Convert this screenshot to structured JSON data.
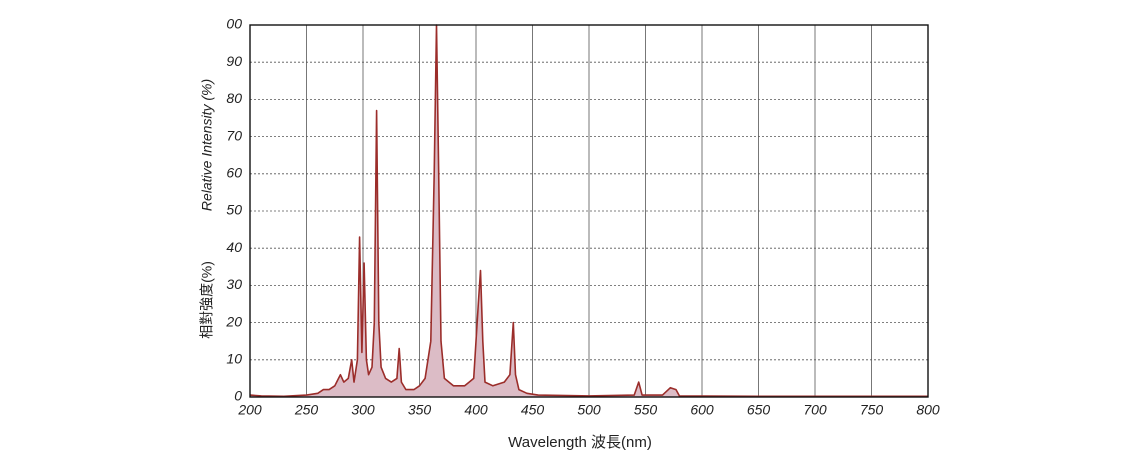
{
  "chart_data": {
    "type": "area",
    "x_label": "Wavelength 波長(nm)",
    "y_label": "Relative Intensity (%)",
    "y_label_alt": "相對強度(%)",
    "x": [
      200,
      210,
      230,
      250,
      260,
      265,
      270,
      275,
      280,
      283,
      287,
      290,
      292,
      295,
      297,
      299,
      301,
      303,
      305,
      308,
      310,
      312,
      314,
      316,
      320,
      325,
      330,
      332,
      334,
      338,
      345,
      350,
      355,
      360,
      363,
      365,
      367,
      369,
      372,
      380,
      390,
      398,
      402,
      404,
      406,
      408,
      415,
      425,
      430,
      433,
      435,
      438,
      445,
      455,
      500,
      540,
      544,
      547,
      565,
      572,
      577,
      580,
      650,
      800
    ],
    "values": [
      0.5,
      0.3,
      0.2,
      0.5,
      1,
      2,
      2,
      3,
      6,
      4,
      5,
      10,
      4,
      10,
      43,
      12,
      36,
      10,
      6,
      8,
      20,
      77,
      20,
      8,
      5,
      4,
      5,
      13,
      4,
      2,
      2,
      3,
      5,
      15,
      60,
      100,
      60,
      15,
      5,
      3,
      3,
      5,
      25,
      34,
      15,
      4,
      3,
      4,
      6,
      20,
      6,
      2,
      1,
      0.5,
      0.3,
      0.5,
      4,
      0.5,
      0.5,
      2.5,
      2,
      0.3,
      0.2,
      0.2
    ],
    "color": "#9b2d2a",
    "fill": "#dcbcc6",
    "xlim": [
      200,
      800
    ],
    "xticks": [
      200,
      250,
      300,
      350,
      400,
      450,
      500,
      550,
      600,
      650,
      700,
      750,
      800
    ],
    "ylim": [
      0,
      100
    ],
    "yticks": [
      0,
      10,
      20,
      30,
      40,
      50,
      60,
      70,
      80,
      90,
      {
        "value": 100,
        "label": "00"
      }
    ],
    "grid": true
  }
}
